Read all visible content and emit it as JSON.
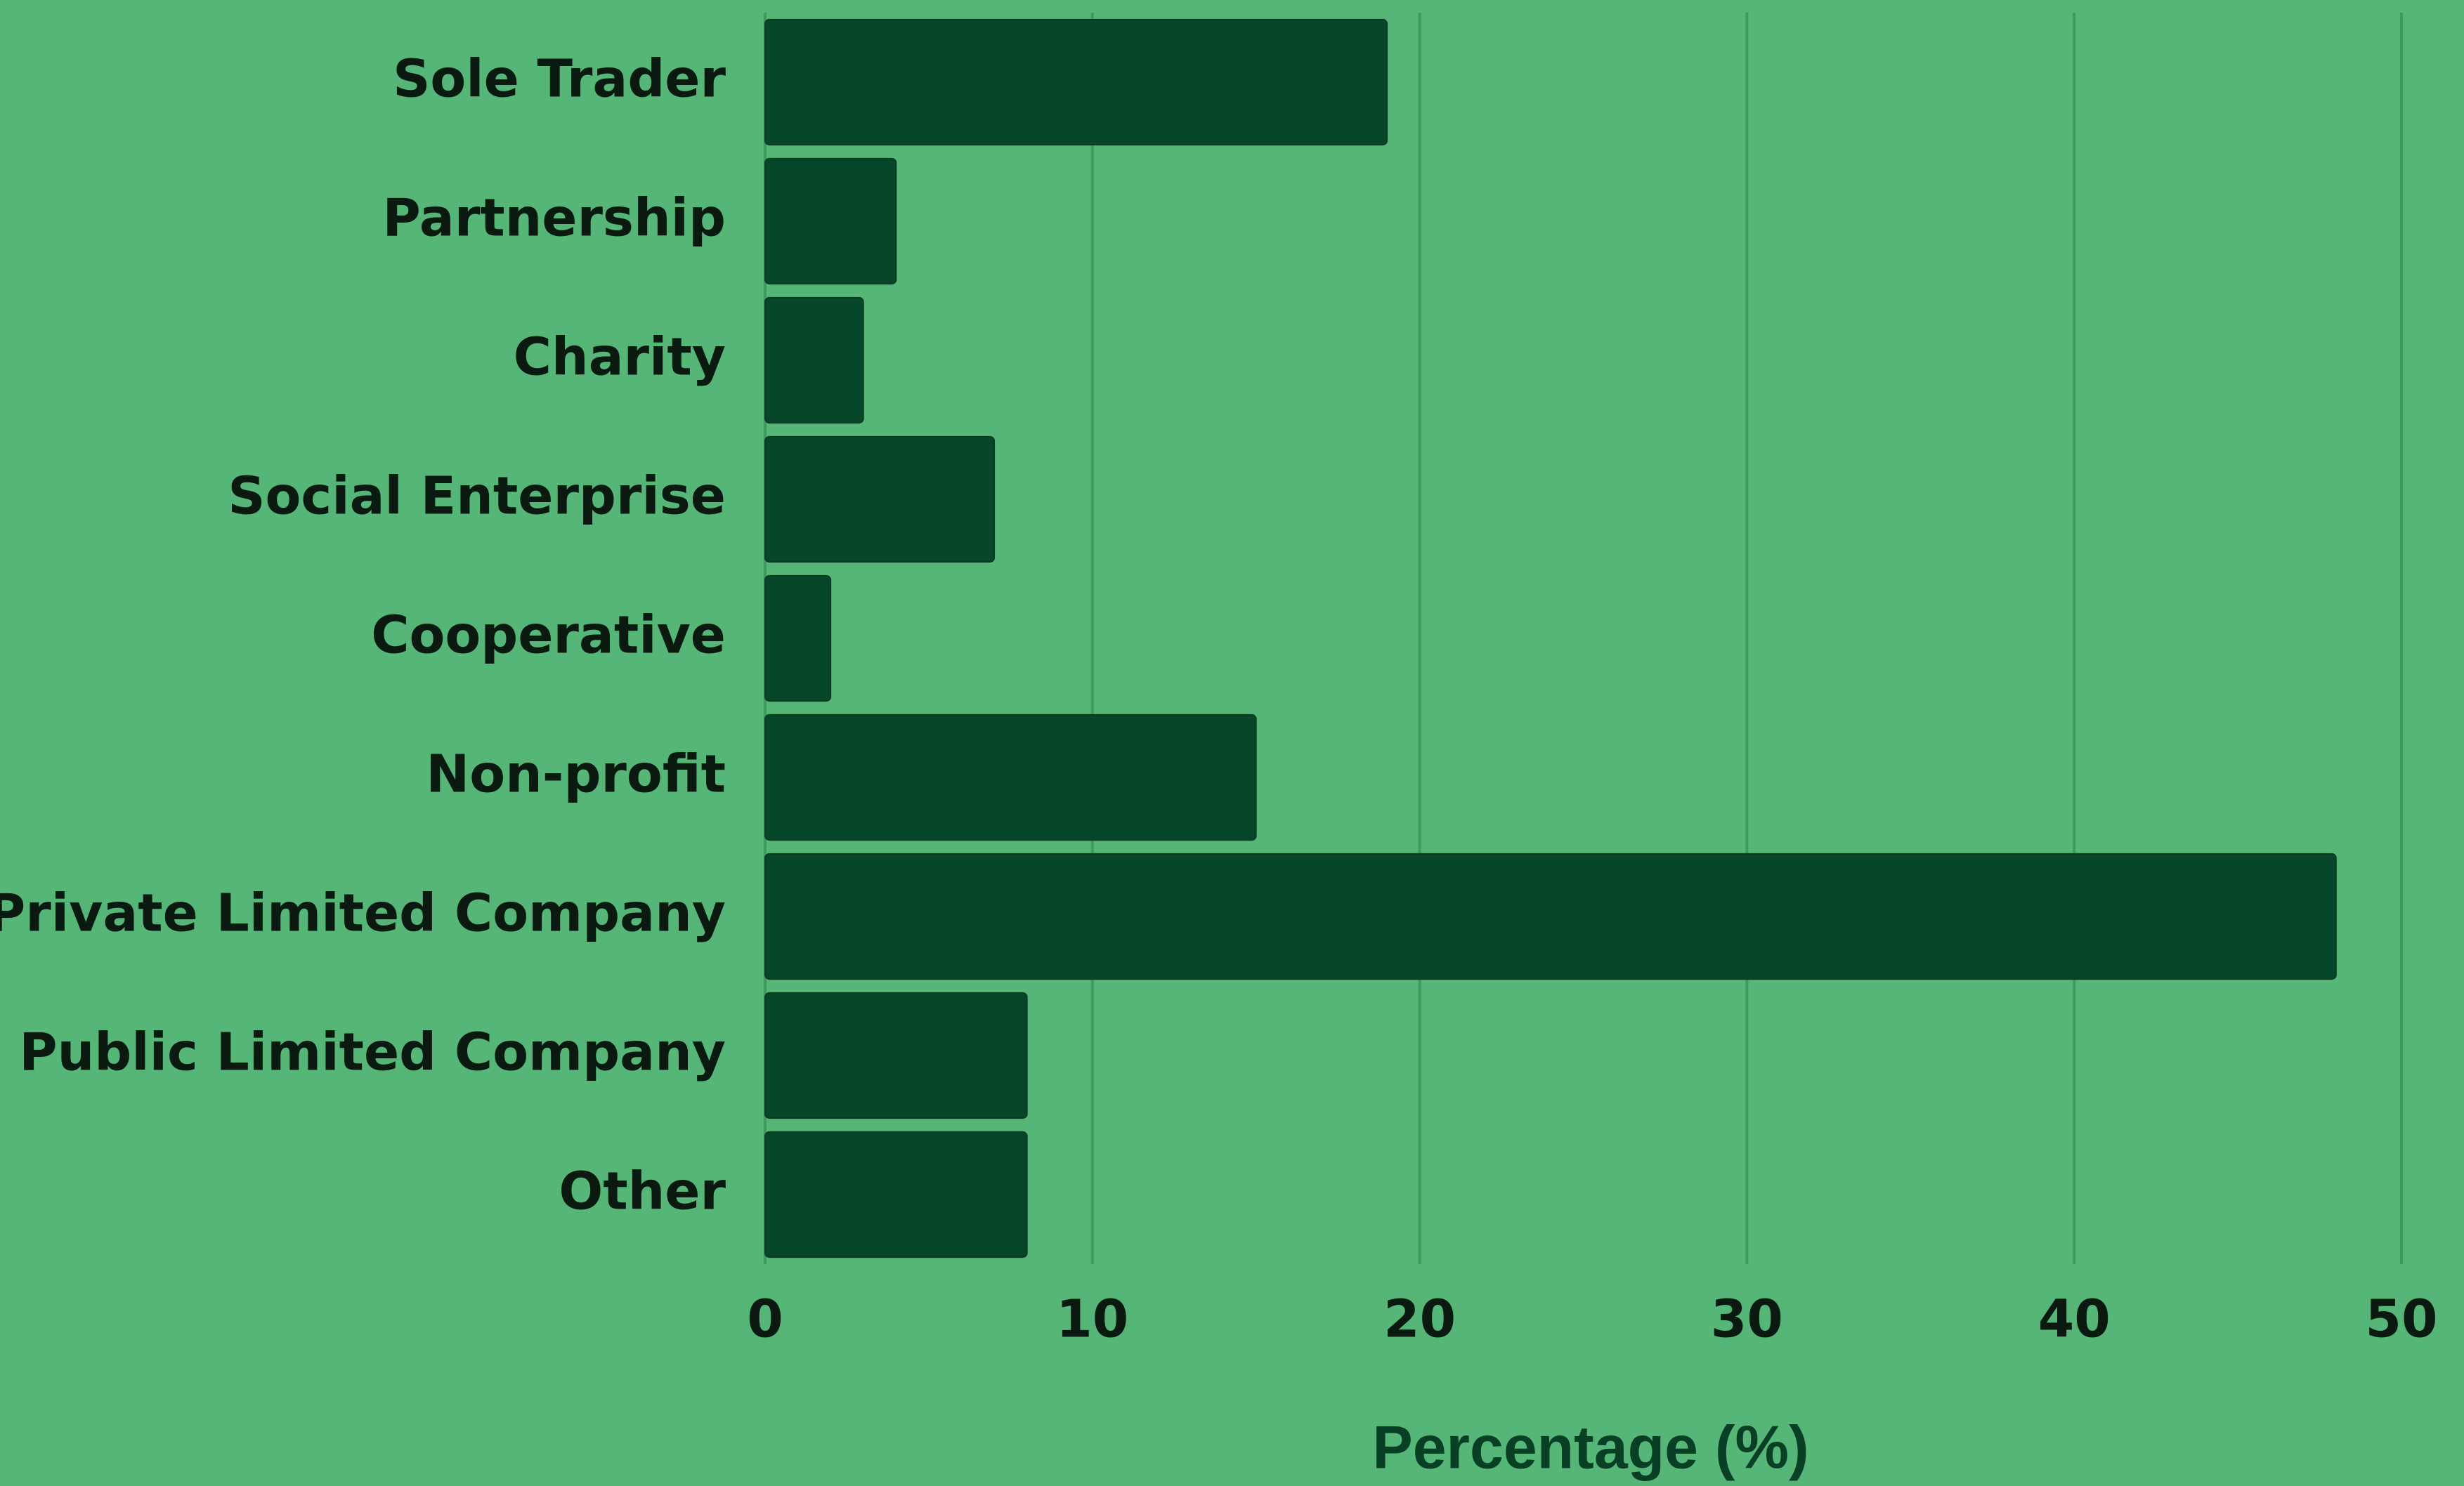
{
  "chart_data": {
    "type": "bar",
    "orientation": "horizontal",
    "x_label": "Percentage (%)",
    "categories": [
      "Sole Trader",
      "Partnership",
      "Charity",
      "Social Enterprise",
      "Cooperative",
      "Non-profit",
      "Private Limited Company",
      "Public Limited Company",
      "Other"
    ],
    "values": [
      19,
      4,
      3,
      7,
      2,
      15,
      48,
      8,
      8
    ],
    "color": "#06472a",
    "xlim": [
      0,
      50
    ],
    "xticks": [
      0,
      10,
      20,
      30,
      40,
      50
    ],
    "grid": true
  }
}
